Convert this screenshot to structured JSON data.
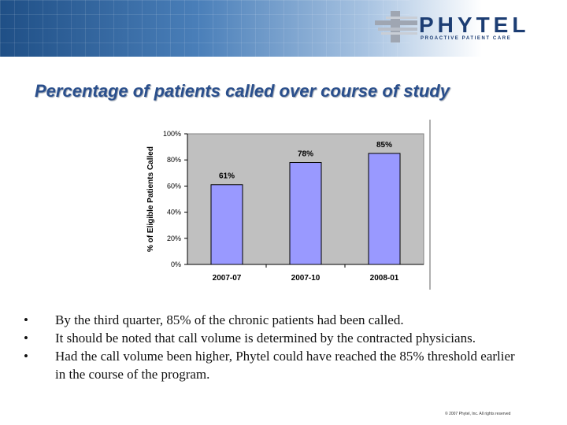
{
  "logo": {
    "wordmark": "PHYTEL",
    "tagline": "PROACTIVE PATIENT CARE"
  },
  "slide": {
    "title": "Percentage of patients called over course of study"
  },
  "chart_data": {
    "type": "bar",
    "categories": [
      "2007-07",
      "2007-10",
      "2008-01"
    ],
    "values": [
      61,
      78,
      85
    ],
    "data_labels": [
      "61%",
      "78%",
      "85%"
    ],
    "ylabel": "% of Eligible Patients Called",
    "ylim": [
      0,
      100
    ],
    "yticks": [
      0,
      20,
      40,
      60,
      80,
      100
    ],
    "ytick_labels": [
      "0%",
      "20%",
      "40%",
      "60%",
      "80%",
      "100%"
    ],
    "grid": false,
    "colors": {
      "bar": "#9999ff",
      "bar_edge": "#000000",
      "plot_bg": "#c0c0c0"
    }
  },
  "bullets": [
    "By the third quarter, 85% of the chronic patients had been called.",
    "It should be noted that call volume is determined by the contracted physicians.",
    "Had the call volume been higher, Phytel could have reached the 85% threshold earlier in the course of the program."
  ],
  "bullet_symbol": "•",
  "footer": {
    "copyright": "© 2007 Phytel, Inc. All rights reserved"
  }
}
